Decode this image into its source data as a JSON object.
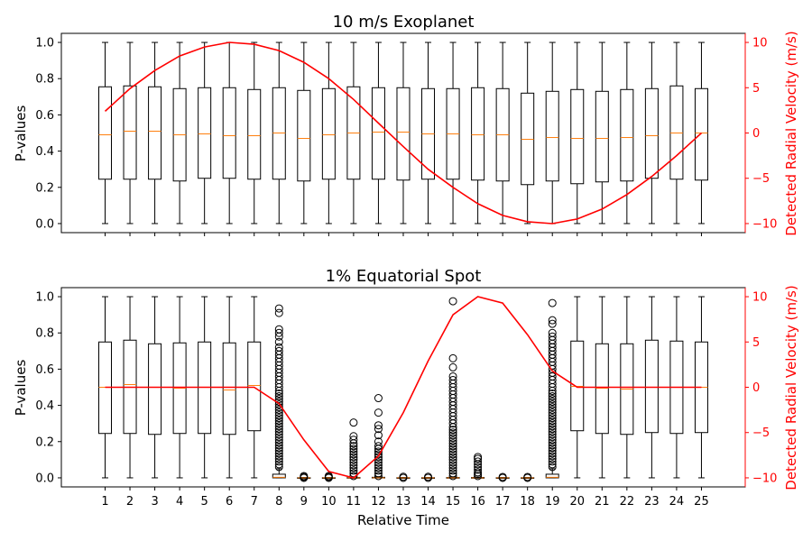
{
  "colors": {
    "box": "#000000",
    "median": "#ff7f0e",
    "velocity": "#ff0000",
    "axis": "#000000",
    "right_axis": "#ff0000"
  },
  "chart_data": [
    {
      "type": "box",
      "title": "10 m/s Exoplanet",
      "xlabel": "",
      "ylabel": "P-values",
      "ylabel_right": "Detected Radial Velocity (m/s)",
      "x": [
        1,
        2,
        3,
        4,
        5,
        6,
        7,
        8,
        9,
        10,
        11,
        12,
        13,
        14,
        15,
        16,
        17,
        18,
        19,
        20,
        21,
        22,
        23,
        24,
        25
      ],
      "ylim": [
        -0.05,
        1.05
      ],
      "yticks": [
        0.0,
        0.2,
        0.4,
        0.6,
        0.8,
        1.0
      ],
      "ytick_labels": [
        "0.0",
        "0.2",
        "0.4",
        "0.6",
        "0.8",
        "1.0"
      ],
      "ylim_right": [
        -11,
        11
      ],
      "yticks_right": [
        -10,
        -5,
        0,
        5,
        10
      ],
      "ytick_labels_right": [
        "−10",
        "−5",
        "0",
        "5",
        "10"
      ],
      "boxes": [
        {
          "x": 1,
          "whislo": 0,
          "q1": 0.245,
          "med": 0.49,
          "q3": 0.755,
          "whishi": 1,
          "fliers": []
        },
        {
          "x": 2,
          "whislo": 0,
          "q1": 0.245,
          "med": 0.51,
          "q3": 0.76,
          "whishi": 1,
          "fliers": []
        },
        {
          "x": 3,
          "whislo": 0,
          "q1": 0.245,
          "med": 0.51,
          "q3": 0.755,
          "whishi": 1,
          "fliers": []
        },
        {
          "x": 4,
          "whislo": 0,
          "q1": 0.235,
          "med": 0.49,
          "q3": 0.745,
          "whishi": 1,
          "fliers": []
        },
        {
          "x": 5,
          "whislo": 0,
          "q1": 0.25,
          "med": 0.495,
          "q3": 0.75,
          "whishi": 1,
          "fliers": []
        },
        {
          "x": 6,
          "whislo": 0,
          "q1": 0.25,
          "med": 0.485,
          "q3": 0.75,
          "whishi": 1,
          "fliers": []
        },
        {
          "x": 7,
          "whislo": 0,
          "q1": 0.245,
          "med": 0.485,
          "q3": 0.74,
          "whishi": 1,
          "fliers": []
        },
        {
          "x": 8,
          "whislo": 0,
          "q1": 0.245,
          "med": 0.5,
          "q3": 0.75,
          "whishi": 1,
          "fliers": []
        },
        {
          "x": 9,
          "whislo": 0,
          "q1": 0.235,
          "med": 0.47,
          "q3": 0.735,
          "whishi": 1,
          "fliers": []
        },
        {
          "x": 10,
          "whislo": 0,
          "q1": 0.245,
          "med": 0.49,
          "q3": 0.745,
          "whishi": 1,
          "fliers": []
        },
        {
          "x": 11,
          "whislo": 0,
          "q1": 0.245,
          "med": 0.5,
          "q3": 0.755,
          "whishi": 1,
          "fliers": []
        },
        {
          "x": 12,
          "whislo": 0,
          "q1": 0.245,
          "med": 0.505,
          "q3": 0.75,
          "whishi": 1,
          "fliers": []
        },
        {
          "x": 13,
          "whislo": 0,
          "q1": 0.24,
          "med": 0.505,
          "q3": 0.75,
          "whishi": 1,
          "fliers": []
        },
        {
          "x": 14,
          "whislo": 0,
          "q1": 0.245,
          "med": 0.495,
          "q3": 0.745,
          "whishi": 1,
          "fliers": []
        },
        {
          "x": 15,
          "whislo": 0,
          "q1": 0.245,
          "med": 0.495,
          "q3": 0.745,
          "whishi": 1,
          "fliers": []
        },
        {
          "x": 16,
          "whislo": 0,
          "q1": 0.24,
          "med": 0.49,
          "q3": 0.75,
          "whishi": 1,
          "fliers": []
        },
        {
          "x": 17,
          "whislo": 0,
          "q1": 0.235,
          "med": 0.49,
          "q3": 0.745,
          "whishi": 1,
          "fliers": []
        },
        {
          "x": 18,
          "whislo": 0,
          "q1": 0.215,
          "med": 0.465,
          "q3": 0.72,
          "whishi": 1,
          "fliers": []
        },
        {
          "x": 19,
          "whislo": 0,
          "q1": 0.235,
          "med": 0.475,
          "q3": 0.73,
          "whishi": 1,
          "fliers": []
        },
        {
          "x": 20,
          "whislo": 0,
          "q1": 0.22,
          "med": 0.47,
          "q3": 0.74,
          "whishi": 1,
          "fliers": []
        },
        {
          "x": 21,
          "whislo": 0,
          "q1": 0.23,
          "med": 0.47,
          "q3": 0.73,
          "whishi": 1,
          "fliers": []
        },
        {
          "x": 22,
          "whislo": 0,
          "q1": 0.235,
          "med": 0.475,
          "q3": 0.74,
          "whishi": 1,
          "fliers": []
        },
        {
          "x": 23,
          "whislo": 0,
          "q1": 0.25,
          "med": 0.485,
          "q3": 0.745,
          "whishi": 1,
          "fliers": []
        },
        {
          "x": 24,
          "whislo": 0,
          "q1": 0.245,
          "med": 0.5,
          "q3": 0.76,
          "whishi": 1,
          "fliers": []
        },
        {
          "x": 25,
          "whislo": 0,
          "q1": 0.24,
          "med": 0.5,
          "q3": 0.745,
          "whishi": 1,
          "fliers": []
        }
      ],
      "velocity": [
        2.4,
        4.9,
        6.9,
        8.5,
        9.5,
        10.0,
        9.8,
        9.1,
        7.8,
        6.0,
        3.7,
        1.1,
        -1.5,
        -4.0,
        -6.0,
        -7.8,
        -9.1,
        -9.8,
        -10.0,
        -9.5,
        -8.4,
        -6.8,
        -4.8,
        -2.5,
        0.0
      ]
    },
    {
      "type": "box",
      "title": "1% Equatorial Spot",
      "xlabel": "Relative Time",
      "ylabel": "P-values",
      "ylabel_right": "Detected Radial Velocity (m/s)",
      "x": [
        1,
        2,
        3,
        4,
        5,
        6,
        7,
        8,
        9,
        10,
        11,
        12,
        13,
        14,
        15,
        16,
        17,
        18,
        19,
        20,
        21,
        22,
        23,
        24,
        25
      ],
      "xtick_labels": [
        "1",
        "2",
        "3",
        "4",
        "5",
        "6",
        "7",
        "8",
        "9",
        "10",
        "11",
        "12",
        "13",
        "14",
        "15",
        "16",
        "17",
        "18",
        "19",
        "20",
        "21",
        "22",
        "23",
        "24",
        "25"
      ],
      "ylim": [
        -0.05,
        1.05
      ],
      "yticks": [
        0.0,
        0.2,
        0.4,
        0.6,
        0.8,
        1.0
      ],
      "ytick_labels": [
        "0.0",
        "0.2",
        "0.4",
        "0.6",
        "0.8",
        "1.0"
      ],
      "ylim_right": [
        -11,
        11
      ],
      "yticks_right": [
        -10,
        -5,
        0,
        5,
        10
      ],
      "ytick_labels_right": [
        "−10",
        "−5",
        "0",
        "5",
        "10"
      ],
      "boxes": [
        {
          "x": 1,
          "whislo": 0,
          "q1": 0.245,
          "med": 0.5,
          "q3": 0.75,
          "whishi": 1,
          "fliers": []
        },
        {
          "x": 2,
          "whislo": 0,
          "q1": 0.245,
          "med": 0.515,
          "q3": 0.76,
          "whishi": 1,
          "fliers": []
        },
        {
          "x": 3,
          "whislo": 0,
          "q1": 0.24,
          "med": 0.5,
          "q3": 0.74,
          "whishi": 1,
          "fliers": []
        },
        {
          "x": 4,
          "whislo": 0,
          "q1": 0.245,
          "med": 0.495,
          "q3": 0.745,
          "whishi": 1,
          "fliers": []
        },
        {
          "x": 5,
          "whislo": 0,
          "q1": 0.245,
          "med": 0.5,
          "q3": 0.75,
          "whishi": 1,
          "fliers": []
        },
        {
          "x": 6,
          "whislo": 0,
          "q1": 0.24,
          "med": 0.485,
          "q3": 0.745,
          "whishi": 1,
          "fliers": []
        },
        {
          "x": 7,
          "whislo": 0,
          "q1": 0.26,
          "med": 0.51,
          "q3": 0.75,
          "whishi": 1,
          "fliers": []
        },
        {
          "x": 8,
          "whislo": 0,
          "q1": 0.0,
          "med": 0.003,
          "q3": 0.02,
          "whishi": 0.05,
          "fliers": [
            0.06,
            0.075,
            0.09,
            0.105,
            0.12,
            0.135,
            0.15,
            0.165,
            0.18,
            0.195,
            0.21,
            0.225,
            0.24,
            0.255,
            0.27,
            0.285,
            0.3,
            0.315,
            0.33,
            0.345,
            0.36,
            0.375,
            0.39,
            0.405,
            0.42,
            0.435,
            0.45,
            0.465,
            0.48,
            0.5,
            0.52,
            0.54,
            0.56,
            0.58,
            0.6,
            0.62,
            0.64,
            0.66,
            0.68,
            0.7,
            0.72,
            0.75,
            0.78,
            0.8,
            0.82,
            0.91,
            0.935
          ]
        },
        {
          "x": 9,
          "whislo": 0,
          "q1": 0,
          "med": 0,
          "q3": 0.001,
          "whishi": 0.002,
          "fliers": [
            0.0,
            0.005,
            0.01
          ]
        },
        {
          "x": 10,
          "whislo": 0,
          "q1": 0,
          "med": 0,
          "q3": 0.001,
          "whishi": 0.002,
          "fliers": [
            0.0,
            0.005,
            0.01
          ]
        },
        {
          "x": 11,
          "whislo": 0,
          "q1": 0,
          "med": 0,
          "q3": 0.002,
          "whishi": 0.005,
          "fliers": [
            0.01,
            0.025,
            0.04,
            0.055,
            0.07,
            0.085,
            0.1,
            0.115,
            0.13,
            0.145,
            0.16,
            0.175,
            0.19,
            0.21,
            0.23,
            0.305
          ]
        },
        {
          "x": 12,
          "whislo": 0,
          "q1": 0,
          "med": 0,
          "q3": 0.003,
          "whishi": 0.006,
          "fliers": [
            0.01,
            0.025,
            0.04,
            0.055,
            0.07,
            0.085,
            0.1,
            0.115,
            0.13,
            0.145,
            0.16,
            0.175,
            0.2,
            0.235,
            0.27,
            0.29,
            0.36,
            0.44
          ]
        },
        {
          "x": 13,
          "whislo": 0,
          "q1": 0,
          "med": 0,
          "q3": 0.001,
          "whishi": 0.002,
          "fliers": [
            0.0,
            0.006
          ]
        },
        {
          "x": 14,
          "whislo": 0,
          "q1": 0,
          "med": 0,
          "q3": 0.001,
          "whishi": 0.002,
          "fliers": [
            0.0,
            0.006
          ]
        },
        {
          "x": 15,
          "whislo": 0,
          "q1": 0,
          "med": 0,
          "q3": 0.002,
          "whishi": 0.005,
          "fliers": [
            0.01,
            0.025,
            0.04,
            0.055,
            0.07,
            0.085,
            0.1,
            0.115,
            0.13,
            0.145,
            0.16,
            0.175,
            0.19,
            0.205,
            0.22,
            0.235,
            0.25,
            0.265,
            0.28,
            0.3,
            0.32,
            0.34,
            0.36,
            0.38,
            0.4,
            0.42,
            0.44,
            0.46,
            0.48,
            0.5,
            0.52,
            0.54,
            0.56,
            0.61,
            0.66,
            0.975
          ]
        },
        {
          "x": 16,
          "whislo": 0,
          "q1": 0,
          "med": 0,
          "q3": 0.002,
          "whishi": 0.004,
          "fliers": [
            0.01,
            0.02,
            0.03,
            0.045,
            0.06,
            0.075,
            0.09,
            0.105,
            0.115
          ]
        },
        {
          "x": 17,
          "whislo": 0,
          "q1": 0,
          "med": 0,
          "q3": 0.001,
          "whishi": 0.002,
          "fliers": [
            0.0,
            0.005
          ]
        },
        {
          "x": 18,
          "whislo": 0,
          "q1": 0,
          "med": 0,
          "q3": 0.001,
          "whishi": 0.002,
          "fliers": [
            0.0,
            0.005
          ]
        },
        {
          "x": 19,
          "whislo": 0,
          "q1": 0.0,
          "med": 0.003,
          "q3": 0.02,
          "whishi": 0.05,
          "fliers": [
            0.06,
            0.075,
            0.09,
            0.105,
            0.12,
            0.135,
            0.15,
            0.165,
            0.18,
            0.195,
            0.21,
            0.225,
            0.24,
            0.255,
            0.27,
            0.285,
            0.3,
            0.315,
            0.33,
            0.345,
            0.36,
            0.375,
            0.39,
            0.405,
            0.42,
            0.435,
            0.45,
            0.465,
            0.48,
            0.5,
            0.52,
            0.54,
            0.56,
            0.58,
            0.6,
            0.62,
            0.64,
            0.66,
            0.68,
            0.7,
            0.72,
            0.74,
            0.76,
            0.78,
            0.8,
            0.85,
            0.87,
            0.965
          ]
        },
        {
          "x": 20,
          "whislo": 0,
          "q1": 0.26,
          "med": 0.505,
          "q3": 0.755,
          "whishi": 1,
          "fliers": []
        },
        {
          "x": 21,
          "whislo": 0,
          "q1": 0.245,
          "med": 0.495,
          "q3": 0.74,
          "whishi": 1,
          "fliers": []
        },
        {
          "x": 22,
          "whislo": 0,
          "q1": 0.24,
          "med": 0.49,
          "q3": 0.74,
          "whishi": 1,
          "fliers": []
        },
        {
          "x": 23,
          "whislo": 0,
          "q1": 0.25,
          "med": 0.5,
          "q3": 0.76,
          "whishi": 1,
          "fliers": []
        },
        {
          "x": 24,
          "whislo": 0,
          "q1": 0.245,
          "med": 0.5,
          "q3": 0.755,
          "whishi": 1,
          "fliers": []
        },
        {
          "x": 25,
          "whislo": 0,
          "q1": 0.25,
          "med": 0.5,
          "q3": 0.75,
          "whishi": 1,
          "fliers": []
        }
      ],
      "velocity": [
        0,
        0,
        0,
        0,
        0,
        0,
        0,
        -1.8,
        -5.8,
        -9.3,
        -10.0,
        -7.6,
        -2.8,
        2.9,
        8.0,
        10.0,
        9.3,
        5.8,
        1.8,
        0,
        0,
        0,
        0,
        0,
        0
      ]
    }
  ]
}
